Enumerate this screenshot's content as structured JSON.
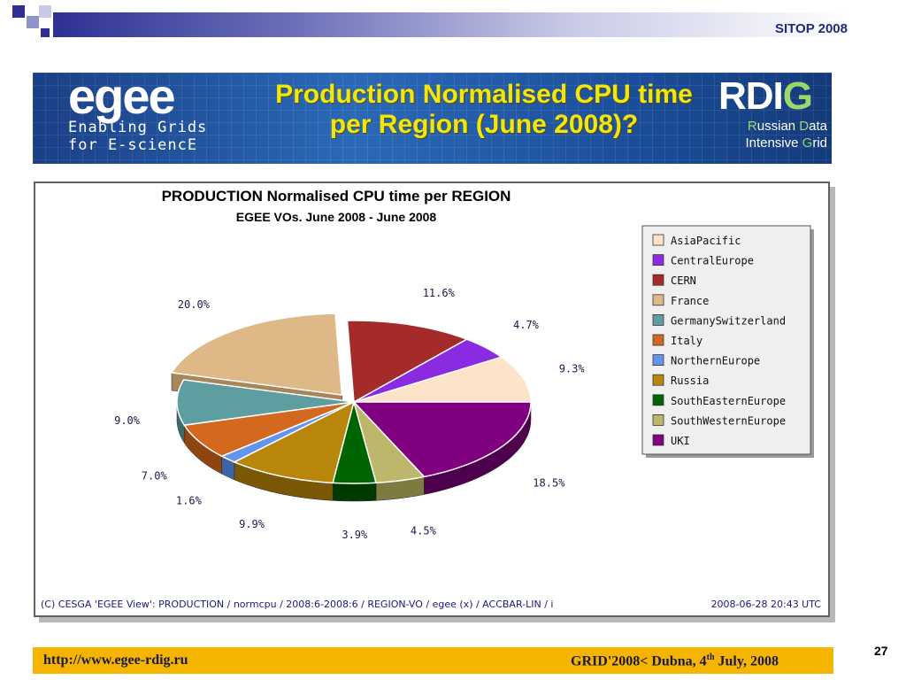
{
  "header": {
    "slide_tag": "SITOP 2008"
  },
  "banner": {
    "left_logo": "egee",
    "left_sub_line1": "Enabling Grids",
    "left_sub_line2": "for E-sciencE",
    "title_line1": "Production Normalised CPU time",
    "title_line2": "per Region (June 2008)?",
    "right_logo_a": "RDI",
    "right_logo_b": "G",
    "right_sub_a1": "R",
    "right_sub_a2": "ussian ",
    "right_sub_a3": "D",
    "right_sub_a4": "ata",
    "right_sub_b1": "Intensive ",
    "right_sub_b2": "G",
    "right_sub_b3": "rid"
  },
  "chart_data": {
    "type": "pie",
    "title": "PRODUCTION Normalised CPU time per REGION",
    "subtitle": "EGEE VOs. June 2008 - June 2008",
    "legend_position": "right",
    "slices": [
      {
        "name": "AsiaPacific",
        "value": 9.3,
        "label": "9.3%",
        "color": "#fde3c8",
        "side": "#c9ae93"
      },
      {
        "name": "CentralEurope",
        "value": 4.7,
        "label": "4.7%",
        "color": "#8a2be2",
        "side": "#5a1796"
      },
      {
        "name": "CERN",
        "value": 11.6,
        "label": "11.6%",
        "color": "#a52a2a",
        "side": "#6b1818"
      },
      {
        "name": "France",
        "value": 20.0,
        "label": "20.0%",
        "color": "#deb887",
        "side": "#a7865a"
      },
      {
        "name": "GermanySwitzerland",
        "value": 9.0,
        "label": "9.0%",
        "color": "#5f9ea0",
        "side": "#3c6b6c"
      },
      {
        "name": "Italy",
        "value": 7.0,
        "label": "7.0%",
        "color": "#d2691e",
        "side": "#8f4510"
      },
      {
        "name": "NorthernEurope",
        "value": 1.6,
        "label": "1.6%",
        "color": "#6495ed",
        "side": "#3d63a8"
      },
      {
        "name": "Russia",
        "value": 9.9,
        "label": "9.9%",
        "color": "#b8860b",
        "side": "#7a5806"
      },
      {
        "name": "SouthEasternEurope",
        "value": 3.9,
        "label": "3.9%",
        "color": "#006400",
        "side": "#003a00"
      },
      {
        "name": "SouthWesternEurope",
        "value": 4.5,
        "label": "4.5%",
        "color": "#bdb76b",
        "side": "#7f7a3f"
      },
      {
        "name": "UKI",
        "value": 18.5,
        "label": "18.5%",
        "color": "#800080",
        "side": "#4e004e"
      }
    ],
    "exploded": "France"
  },
  "chart_footer": {
    "left": "(C) CESGA 'EGEE View': PRODUCTION / normcpu / 2008:6-2008:6 / REGION-VO / egee (x) / ACCBAR-LIN / i",
    "right": "2008-06-28 20:43 UTC"
  },
  "footer": {
    "url": "http://www.egee-rdig.ru",
    "event_a": "GRID'2008< Dubna, 4",
    "event_sup": "th",
    "event_b": " July, 2008",
    "page_number": "27"
  }
}
